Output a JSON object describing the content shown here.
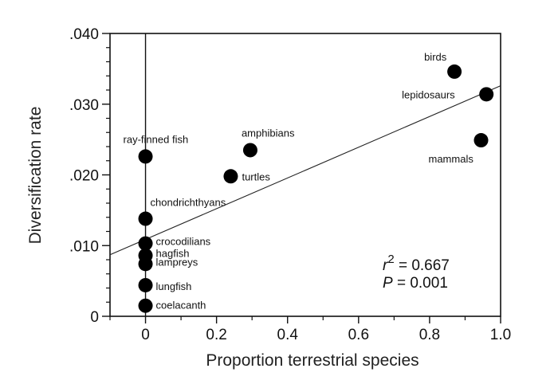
{
  "chart_data": {
    "type": "scatter",
    "xlabel": "Proportion terrestrial species",
    "ylabel": "Diversification rate",
    "xlim": [
      -0.1,
      1.0
    ],
    "ylim": [
      0,
      0.04
    ],
    "x_ticks": [
      {
        "value": 0,
        "label": "0"
      },
      {
        "value": 0.2,
        "label": "0.2"
      },
      {
        "value": 0.4,
        "label": "0.4"
      },
      {
        "value": 0.6,
        "label": "0.6"
      },
      {
        "value": 0.8,
        "label": "0.8"
      },
      {
        "value": 1.0,
        "label": "1.0"
      }
    ],
    "y_ticks": [
      {
        "value": 0,
        "label": "0"
      },
      {
        "value": 0.01,
        "label": ".010"
      },
      {
        "value": 0.02,
        "label": ".020"
      },
      {
        "value": 0.03,
        "label": ".030"
      },
      {
        "value": 0.04,
        "label": ".040"
      }
    ],
    "points": [
      {
        "label": "ray-finned fish",
        "x": 0.0,
        "y": 0.0226
      },
      {
        "label": "chondrichthyans",
        "x": 0.0,
        "y": 0.0138
      },
      {
        "label": "crocodilians",
        "x": 0.0,
        "y": 0.0103
      },
      {
        "label": "hagfish",
        "x": 0.0,
        "y": 0.0086
      },
      {
        "label": "lampreys",
        "x": 0.0,
        "y": 0.0074
      },
      {
        "label": "lungfish",
        "x": 0.0,
        "y": 0.0044
      },
      {
        "label": "coelacanth",
        "x": 0.0,
        "y": 0.0015
      },
      {
        "label": "turtles",
        "x": 0.24,
        "y": 0.0198
      },
      {
        "label": "amphibians",
        "x": 0.295,
        "y": 0.0235
      },
      {
        "label": "birds",
        "x": 0.87,
        "y": 0.0346
      },
      {
        "label": "lepidosaurs",
        "x": 0.96,
        "y": 0.0314
      },
      {
        "label": "mammals",
        "x": 0.945,
        "y": 0.0249
      }
    ],
    "regression_line": {
      "x": [
        -0.1,
        1.0
      ],
      "y": [
        0.0087,
        0.0326
      ]
    },
    "annotations": {
      "r2_prefix": "r",
      "r2_superscript": "2",
      "r2_value": " = 0.667",
      "p_prefix": "P",
      "p_value": " = 0.001"
    }
  }
}
